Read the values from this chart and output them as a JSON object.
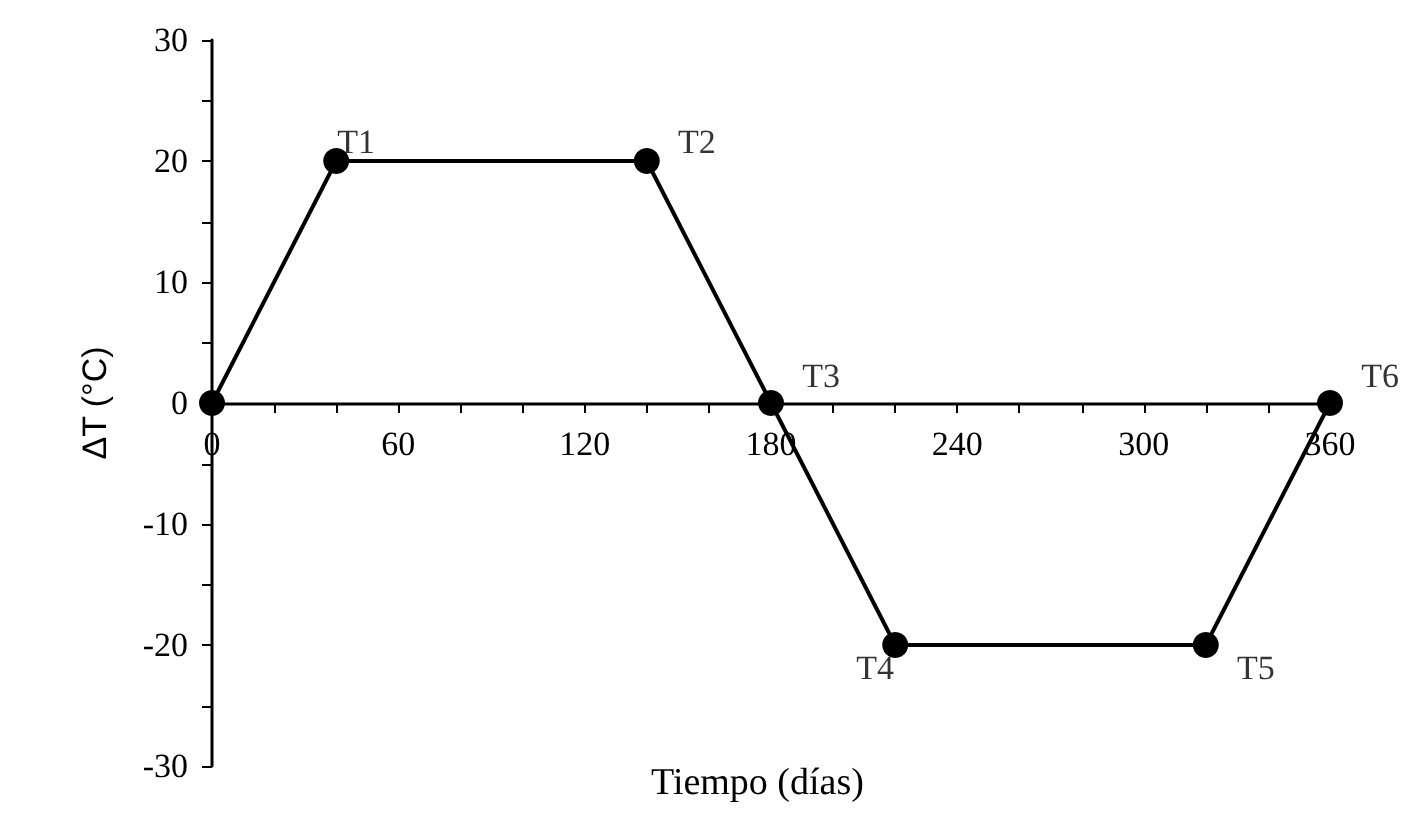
{
  "chart_data": {
    "type": "line",
    "xlabel": "Tiempo (días)",
    "ylabel": "ΔT (°C)",
    "x": [
      0,
      40,
      140,
      180,
      220,
      320,
      360
    ],
    "series": [
      {
        "color": "#000000",
        "values": [
          0,
          20,
          20,
          0,
          -20,
          -20,
          0
        ]
      }
    ],
    "xlim": [
      0,
      360
    ],
    "xticks": [
      0,
      {
        "value": 20,
        "label": null
      },
      {
        "value": 40,
        "label": null
      },
      60,
      {
        "value": 80,
        "label": null
      },
      {
        "value": 100,
        "label": null
      },
      120,
      {
        "value": 140,
        "label": null
      },
      {
        "value": 160,
        "label": null
      },
      180,
      {
        "value": 200,
        "label": null
      },
      {
        "value": 220,
        "label": null
      },
      240,
      {
        "value": 260,
        "label": null
      },
      {
        "value": 280,
        "label": null
      },
      300,
      {
        "value": 320,
        "label": null
      },
      {
        "value": 340,
        "label": null
      },
      360
    ],
    "ylim": [
      -30,
      30
    ],
    "yticks": [
      -30,
      {
        "value": -25,
        "label": null
      },
      -20,
      {
        "value": -15,
        "label": null
      },
      -10,
      {
        "value": -5,
        "label": null
      },
      0,
      {
        "value": 5,
        "label": null
      },
      10,
      {
        "value": 15,
        "label": null
      },
      20,
      {
        "value": 25,
        "label": null
      },
      30
    ],
    "marker": "circle",
    "line_style": "solid",
    "annotations": [
      {
        "text": "T1",
        "x": 40,
        "y": 20
      },
      {
        "text": "T2",
        "x": 140,
        "y": 20
      },
      {
        "text": "T3",
        "x": 180,
        "y": 0
      },
      {
        "text": "T4",
        "x": 220,
        "y": -20
      },
      {
        "text": "T5",
        "x": 320,
        "y": -20
      },
      {
        "text": "T6",
        "x": 360,
        "y": 0
      }
    ]
  }
}
